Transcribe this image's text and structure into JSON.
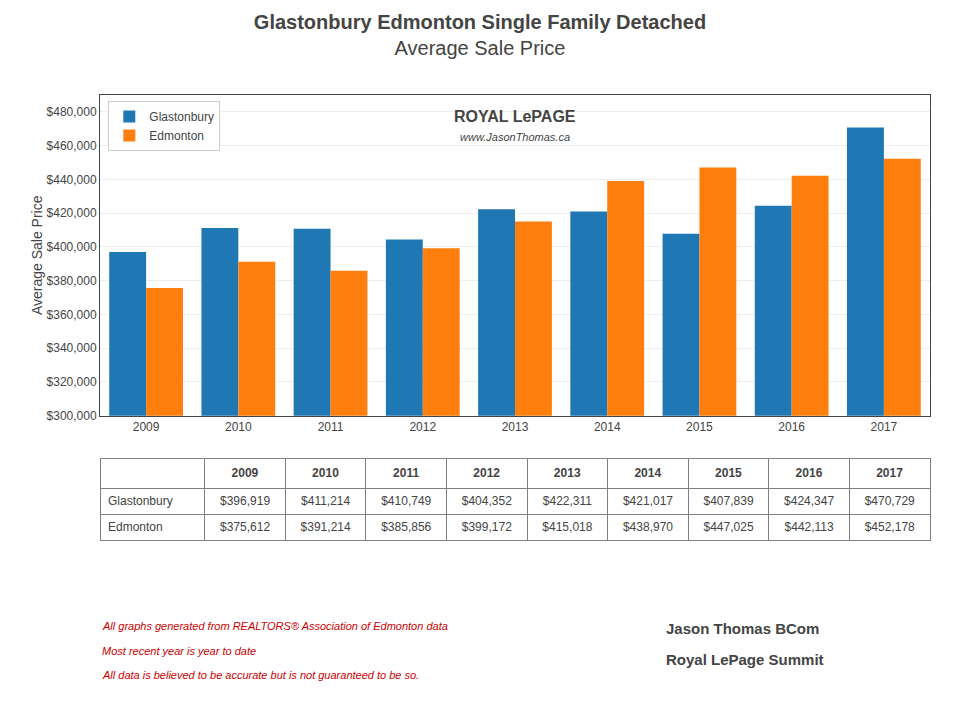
{
  "chart_data": {
    "type": "bar",
    "title": "Glastonbury Edmonton Single Family Detached",
    "subtitle": "Average Sale Price",
    "ylabel": "Average Sale Price",
    "categories": [
      "2009",
      "2010",
      "2011",
      "2012",
      "2013",
      "2014",
      "2015",
      "2016",
      "2017"
    ],
    "series": [
      {
        "name": "Glastonbury",
        "values": [
          396919,
          411214,
          410749,
          404352,
          422311,
          421017,
          407839,
          424347,
          470729
        ],
        "value_labels": [
          "$396,919",
          "$411,214",
          "$410,749",
          "$404,352",
          "$422,311",
          "$421,017",
          "$407,839",
          "$424,347",
          "$470,729"
        ]
      },
      {
        "name": "Edmonton",
        "values": [
          375612,
          391214,
          385856,
          399172,
          415018,
          438970,
          447025,
          442113,
          452178
        ],
        "value_labels": [
          "$375,612",
          "$391,214",
          "$385,856",
          "$399,172",
          "$415,018",
          "$438,970",
          "$447,025",
          "$442,113",
          "$452,178"
        ]
      }
    ],
    "ylim": [
      300000,
      490000
    ],
    "yticks": [
      {
        "value": 300000,
        "label": "$300,000"
      },
      {
        "value": 320000,
        "label": "$320,000"
      },
      {
        "value": 340000,
        "label": "$340,000"
      },
      {
        "value": 360000,
        "label": "$360,000"
      },
      {
        "value": 380000,
        "label": "$380,000"
      },
      {
        "value": 400000,
        "label": "$400,000"
      },
      {
        "value": 420000,
        "label": "$420,000"
      },
      {
        "value": 440000,
        "label": "$440,000"
      },
      {
        "value": 460000,
        "label": "$460,000"
      },
      {
        "value": 480000,
        "label": "$480,000"
      }
    ],
    "grid": true,
    "legend": "upper left",
    "annotations": [
      "All graphs generated from REALTORS® Association of Edmonton data",
      "Most recent year is year to date",
      "All data is believed to be accurate but is not guaranteed to be so.",
      "Jason Thomas BCom",
      "Royal LePage Summit",
      "ROYAL LePAGE",
      "www.JasonThomas.ca"
    ]
  }
}
